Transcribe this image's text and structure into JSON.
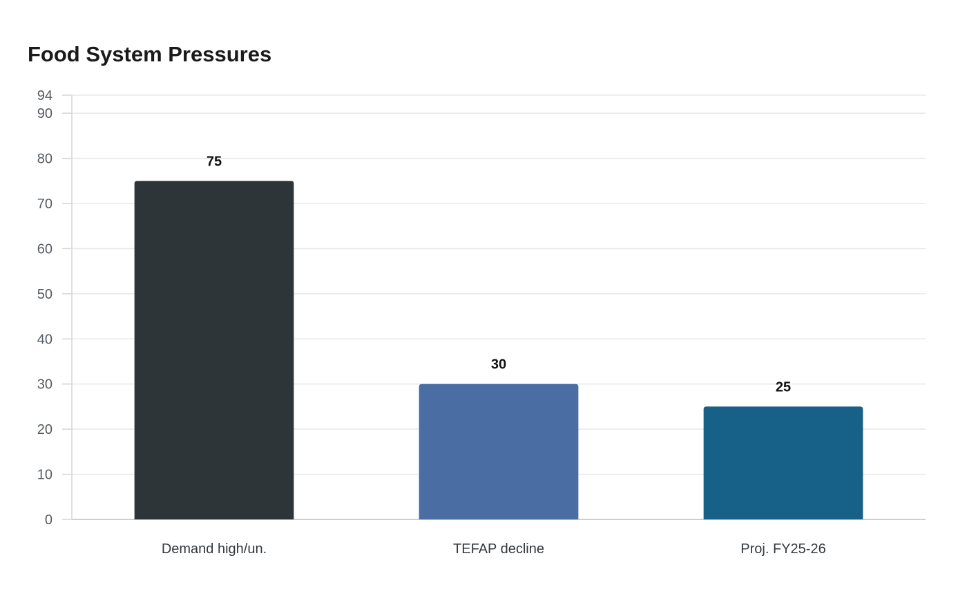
{
  "chart_data": {
    "type": "bar",
    "title": "Food System Pressures",
    "xlabel": "",
    "ylabel": "",
    "categories": [
      "Demand high/un.",
      "TEFAP decline",
      "Proj. FY25-26"
    ],
    "values": [
      75,
      30,
      25
    ],
    "data_labels": [
      "75",
      "30",
      "25"
    ],
    "colors": [
      "#2e3538",
      "#4a6ea3",
      "#176087"
    ],
    "ylim": [
      0,
      94
    ],
    "yticks": [
      0,
      10,
      20,
      30,
      40,
      50,
      60,
      70,
      80,
      90,
      94
    ],
    "grid": true,
    "legend": "none"
  }
}
